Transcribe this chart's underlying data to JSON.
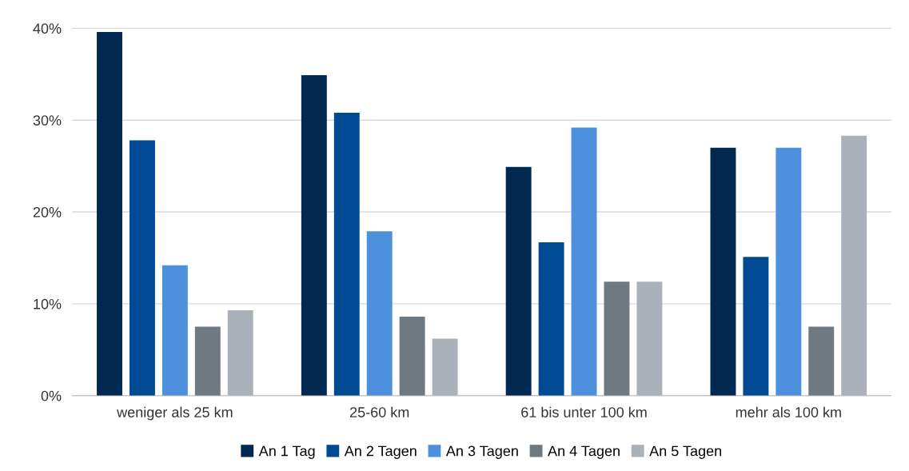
{
  "chart_data": {
    "type": "bar",
    "categories": [
      "weniger als 25 km",
      "25-60 km",
      "61 bis unter 100 km",
      "mehr als 100 km"
    ],
    "series": [
      {
        "name": "An 1 Tag",
        "color": "#002850",
        "values": [
          39.6,
          34.9,
          24.9,
          27.0
        ]
      },
      {
        "name": "An 2 Tagen",
        "color": "#004a94",
        "values": [
          27.8,
          30.8,
          16.7,
          15.1
        ]
      },
      {
        "name": "An 3 Tagen",
        "color": "#4d91dc",
        "values": [
          14.2,
          17.9,
          29.2,
          27.0
        ]
      },
      {
        "name": "An 4 Tagen",
        "color": "#6e7981",
        "values": [
          7.5,
          8.6,
          12.4,
          7.5
        ]
      },
      {
        "name": "An 5 Tagen",
        "color": "#aab1b8",
        "values": [
          9.3,
          6.2,
          12.4,
          28.3
        ]
      }
    ],
    "ylim": [
      0,
      40
    ],
    "yticks": [
      {
        "value": 0,
        "label": "0%"
      },
      {
        "value": 10,
        "label": "10%"
      },
      {
        "value": 20,
        "label": "20%"
      },
      {
        "value": 30,
        "label": "30%"
      },
      {
        "value": 40,
        "label": "40%"
      }
    ],
    "grid": "y",
    "legend": "bottom"
  }
}
